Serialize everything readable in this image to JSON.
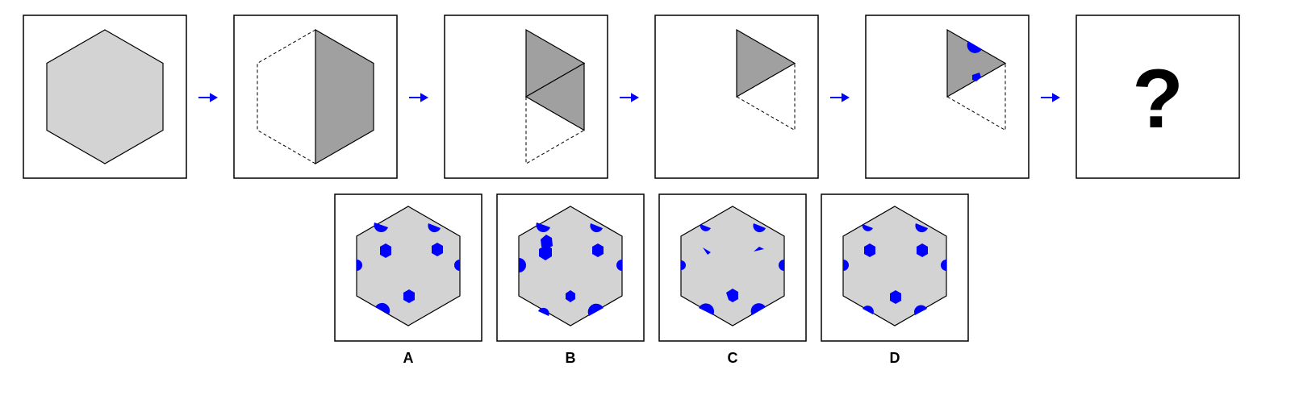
{
  "question_mark": "?",
  "options": [
    {
      "label": "A"
    },
    {
      "label": "B"
    },
    {
      "label": "C"
    },
    {
      "label": "D"
    }
  ],
  "colors": {
    "hexagon_fill": "#d3d3d3",
    "folded_fill": "#a0a0a0",
    "hole": "#0000ff",
    "arrow": "#0000ff",
    "outline": "#000000"
  }
}
